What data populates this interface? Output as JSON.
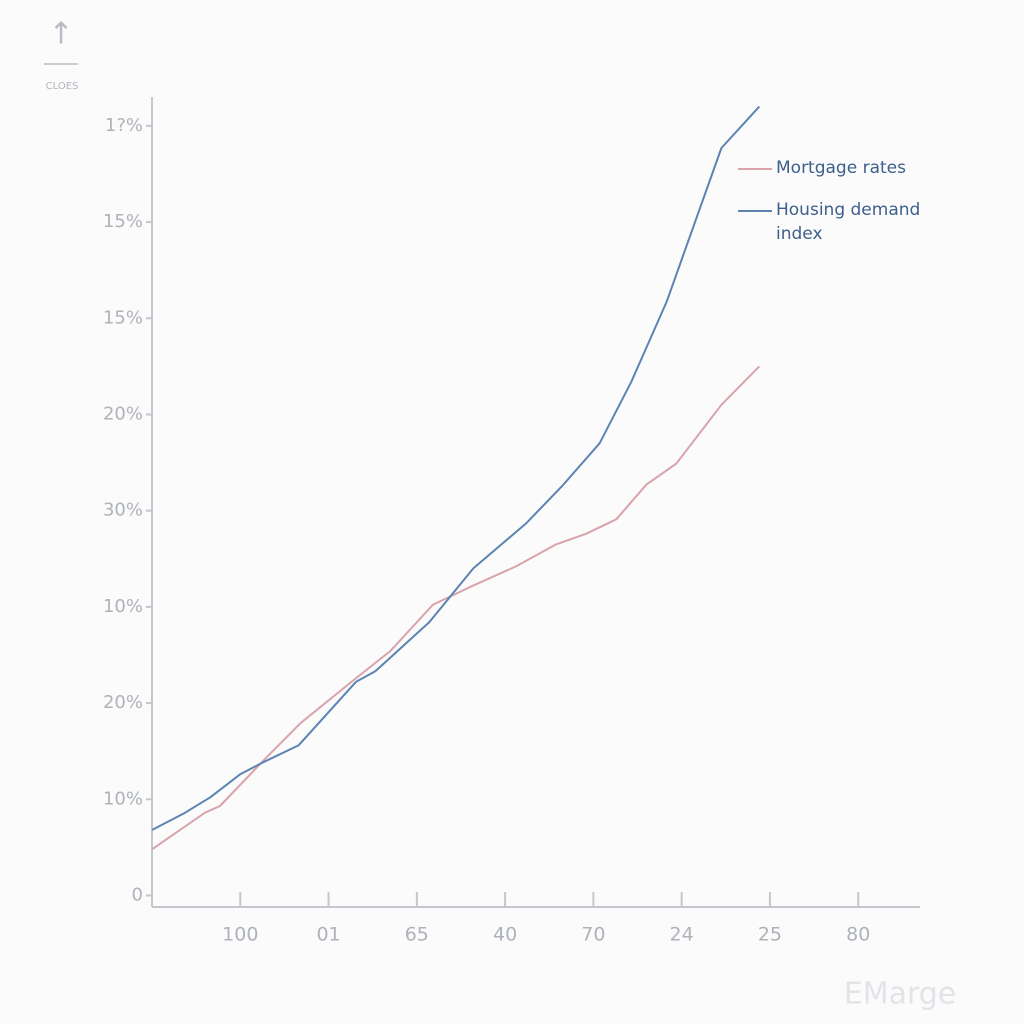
{
  "chart_data": {
    "type": "line",
    "header_label": "CLOES",
    "watermark": "EMarge",
    "xlim": [
      0,
      8.7
    ],
    "ylim": [
      -0.12,
      8.3
    ],
    "xticks": [
      {
        "value": 1,
        "label": "100"
      },
      {
        "value": 2,
        "label": "01"
      },
      {
        "value": 3,
        "label": "65"
      },
      {
        "value": 4,
        "label": "40"
      },
      {
        "value": 5,
        "label": "70"
      },
      {
        "value": 6,
        "label": "24"
      },
      {
        "value": 7,
        "label": "25"
      },
      {
        "value": 8,
        "label": "80"
      }
    ],
    "yticks": [
      0,
      {
        "value": 1,
        "label": "10%"
      },
      {
        "value": 2,
        "label": "20%"
      },
      {
        "value": 3,
        "label": "10%"
      },
      {
        "value": 4,
        "label": "30%"
      },
      {
        "value": 5,
        "label": "20%"
      },
      {
        "value": 6,
        "label": "15%"
      },
      {
        "value": 7,
        "label": "15%"
      },
      {
        "value": 8,
        "label": "1?%"
      }
    ],
    "grid": false,
    "legend": "upper right",
    "series": [
      {
        "name": "Mortgage rates",
        "color": "#d9a3ab",
        "x": [
          0,
          0.6,
          0.77,
          1.28,
          1.68,
          2.3,
          2.7,
          3.18,
          3.61,
          4.12,
          4.58,
          4.92,
          5.26,
          5.6,
          5.94,
          6.45,
          6.88
        ],
        "values": [
          0.48,
          0.86,
          0.93,
          1.42,
          1.79,
          2.25,
          2.54,
          3.02,
          3.21,
          3.42,
          3.65,
          3.76,
          3.91,
          4.27,
          4.49,
          5.1,
          5.5
        ]
      },
      {
        "name": "Housing demand index",
        "color": "#5b84b1",
        "x": [
          0,
          0.375,
          0.66,
          1.0,
          1.25,
          1.66,
          2.31,
          2.53,
          3.14,
          3.64,
          4.24,
          4.64,
          5.07,
          5.43,
          5.83,
          6.45,
          6.88
        ],
        "values": [
          0.68,
          0.86,
          1.02,
          1.26,
          1.38,
          1.56,
          2.22,
          2.33,
          2.84,
          3.4,
          3.87,
          4.25,
          4.7,
          5.34,
          6.17,
          7.77,
          8.2
        ]
      }
    ]
  }
}
